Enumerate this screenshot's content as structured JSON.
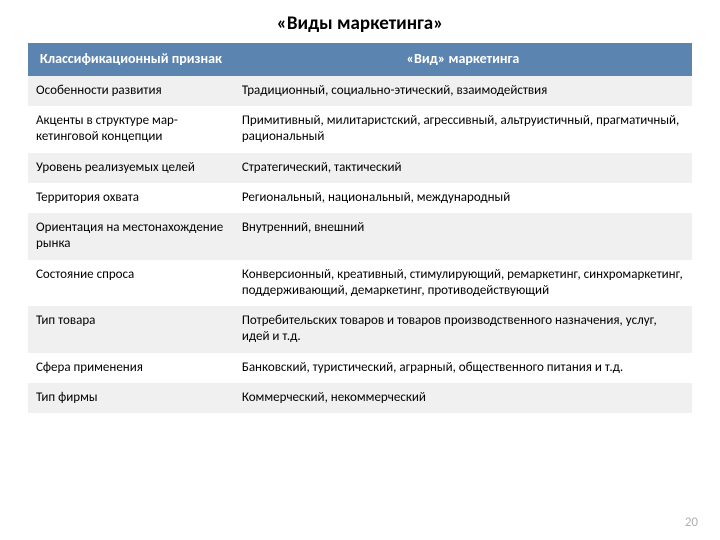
{
  "title": "«Виды маркетинга»",
  "page_number": "20",
  "table": {
    "type": "table",
    "header_bg": "#5b84b1",
    "header_fg": "#ffffff",
    "row_odd_bg": "#f0f0f0",
    "row_even_bg": "#ffffff",
    "title_fontsize": 19,
    "header_fontsize": 14,
    "cell_fontsize": 13,
    "col1_width_pct": 31,
    "col2_width_pct": 69,
    "columns": [
      "Классификационный признак",
      "«Вид» маркетинга"
    ],
    "rows": [
      [
        "Особенности развития",
        "Традиционный, социально-этический, взаимодействия"
      ],
      [
        "Акценты в структуре мар-кетинговой концепции",
        "Примитивный, милитаристский, агрессивный, альтруистичный, прагматичный, рациональный"
      ],
      [
        "Уровень реализуемых целей",
        "Стратегический, тактический"
      ],
      [
        "Территория охвата",
        "Региональный, национальный, международный"
      ],
      [
        "Ориентация на местонахождение рынка",
        "Внутренний, внешний"
      ],
      [
        "Состояние спроса",
        "Конверсионный, креативный, стимулирующий, ремаркетинг, синхромаркетинг, поддерживающий, демаркетинг, противодействующий"
      ],
      [
        "Тип товара",
        "Потребительских товаров и товаров производственного назначения, услуг, идей и т.д."
      ],
      [
        "Сфера применения",
        "Банковский, туристический, аграрный, общественного питания и т.д."
      ],
      [
        "Тип фирмы",
        "Коммерческий, некоммерческий"
      ]
    ]
  }
}
